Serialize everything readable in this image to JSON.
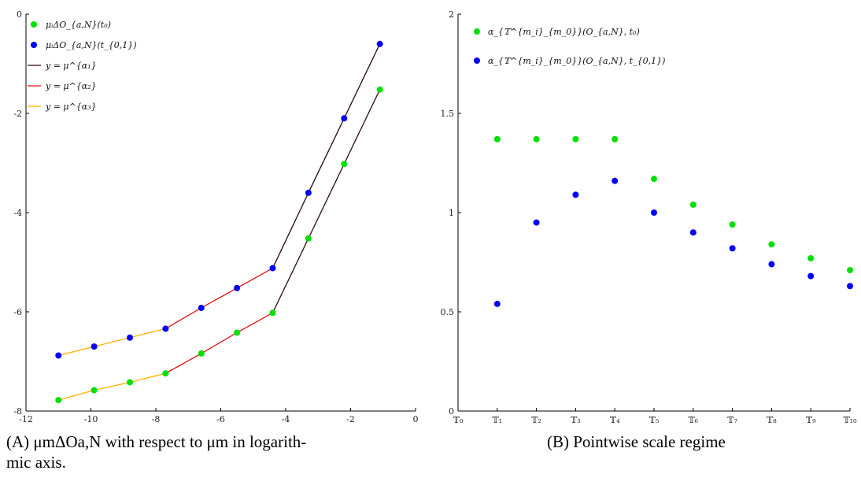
{
  "chart_data": [
    {
      "type": "line",
      "xlim": [
        -12,
        0
      ],
      "ylim": [
        -8,
        0
      ],
      "xticks": [
        -12,
        -10,
        -8,
        -6,
        -4,
        -2,
        0
      ],
      "yticks": [
        0,
        -2,
        -4,
        -6,
        -8
      ],
      "xtick_labels": [
        "-12",
        "-10",
        "-8",
        "-6",
        "-4",
        "-2",
        "0"
      ],
      "ytick_labels": [
        "0",
        "-2",
        "-4",
        "-6",
        "-8"
      ],
      "legend_placement": "top-left",
      "grid": false,
      "series": [
        {
          "name": "μᵢΔO_{a,N}(t₀)",
          "kind": "points",
          "color": "#00e000",
          "x": [
            -11.0,
            -9.9,
            -8.8,
            -7.7,
            -6.6,
            -5.5,
            -4.4,
            -3.3,
            -2.2,
            -1.1
          ],
          "y": [
            -7.78,
            -7.58,
            -7.42,
            -7.24,
            -6.84,
            -6.42,
            -6.02,
            -4.52,
            -3.02,
            -1.52
          ]
        },
        {
          "name": "μᵢΔO_{a,N}(t_{0,1})",
          "kind": "points",
          "color": "#0000ff",
          "x": [
            -11.0,
            -9.9,
            -8.8,
            -7.7,
            -6.6,
            -5.5,
            -4.4,
            -3.3,
            -2.2,
            -1.1
          ],
          "y": [
            -6.88,
            -6.7,
            -6.52,
            -6.34,
            -5.92,
            -5.52,
            -5.12,
            -3.6,
            -2.1,
            -0.6
          ]
        },
        {
          "name": "y = μ^{α₁}",
          "kind": "lines",
          "color": "#2b0a0a",
          "segments": [
            {
              "x": [
                -4.4,
                -3.3,
                -2.2,
                -1.1
              ],
              "y": [
                -6.02,
                -4.52,
                -3.02,
                -1.52
              ]
            },
            {
              "x": [
                -4.4,
                -3.3,
                -2.2,
                -1.1
              ],
              "y": [
                -5.12,
                -3.6,
                -2.1,
                -0.6
              ]
            }
          ]
        },
        {
          "name": "y = μ^{α₂}",
          "kind": "lines",
          "color": "#e01010",
          "segments": [
            {
              "x": [
                -7.7,
                -6.6,
                -5.5,
                -4.4
              ],
              "y": [
                -7.24,
                -6.84,
                -6.42,
                -6.02
              ]
            },
            {
              "x": [
                -7.7,
                -6.6,
                -5.5,
                -4.4
              ],
              "y": [
                -6.34,
                -5.92,
                -5.52,
                -5.12
              ]
            }
          ]
        },
        {
          "name": "y = μ^{α₃}",
          "kind": "lines",
          "color": "#ffb000",
          "segments": [
            {
              "x": [
                -11.0,
                -9.9,
                -8.8,
                -7.7
              ],
              "y": [
                -7.78,
                -7.58,
                -7.42,
                -7.24
              ]
            },
            {
              "x": [
                -11.0,
                -9.9,
                -8.8,
                -7.7
              ],
              "y": [
                -6.88,
                -6.7,
                -6.52,
                -6.34
              ]
            }
          ]
        }
      ]
    },
    {
      "type": "scatter",
      "categories": [
        "𝕋₀",
        "𝕋₁",
        "𝕋₂",
        "𝕋₃",
        "𝕋₄",
        "𝕋₅",
        "𝕋₆",
        "𝕋₇",
        "𝕋₈",
        "𝕋₉",
        "𝕋₁₀"
      ],
      "ylim": [
        0,
        2
      ],
      "yticks": [
        0,
        0.5,
        1,
        1.5,
        2
      ],
      "ytick_labels": [
        "0",
        "0.5",
        "1",
        "1.5",
        "2"
      ],
      "legend_placement": "top-left",
      "grid": false,
      "series": [
        {
          "name": "α_{𝕋^{m_i}_{m_0}}(O_{a,N}, t₀)",
          "color": "#00e000",
          "x": [
            1,
            2,
            3,
            4,
            5,
            6,
            7,
            8,
            9,
            10
          ],
          "y": [
            1.37,
            1.37,
            1.37,
            1.37,
            1.17,
            1.04,
            0.94,
            0.84,
            0.77,
            0.71
          ]
        },
        {
          "name": "α_{𝕋^{m_i}_{m_0}}(O_{a,N}, t_{0,1})",
          "color": "#0000ff",
          "x": [
            1,
            2,
            3,
            4,
            5,
            6,
            7,
            8,
            9,
            10
          ],
          "y": [
            0.54,
            0.95,
            1.09,
            1.16,
            1.0,
            0.9,
            0.82,
            0.74,
            0.68,
            0.63
          ]
        }
      ]
    }
  ],
  "captions": {
    "a_tag": "(A)",
    "a_line1": "μmΔOa,N with respect to μm in logarith-",
    "a_line2": "mic axis.",
    "b_tag": "(B)",
    "b_text": "Pointwise scale regime"
  }
}
